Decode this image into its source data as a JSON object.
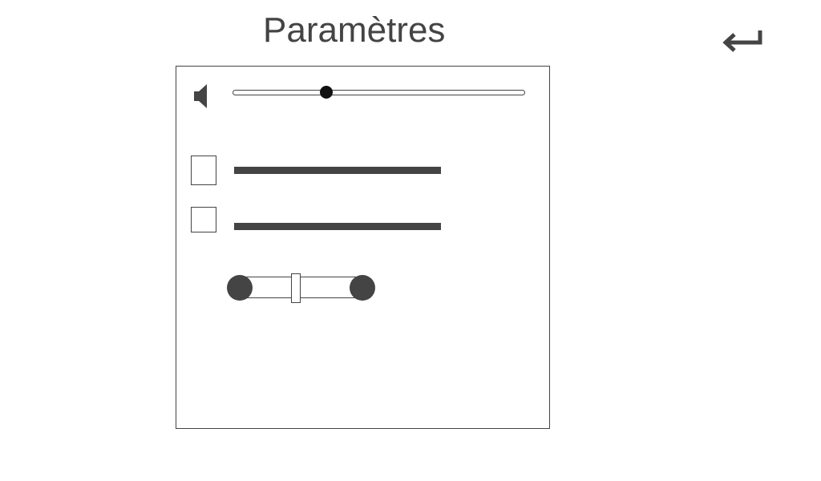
{
  "header": {
    "title": "Paramètres"
  },
  "navigation": {
    "back_icon": "return-arrow-icon"
  },
  "settings": {
    "volume": {
      "icon": "speaker-icon",
      "level": 0.32
    },
    "options": [
      {
        "checked": false
      },
      {
        "checked": false
      }
    ],
    "toggle": {
      "value_fraction": 0.45
    }
  },
  "colors": {
    "foreground": "#444444",
    "thumb": "#111111",
    "background": "#ffffff"
  }
}
